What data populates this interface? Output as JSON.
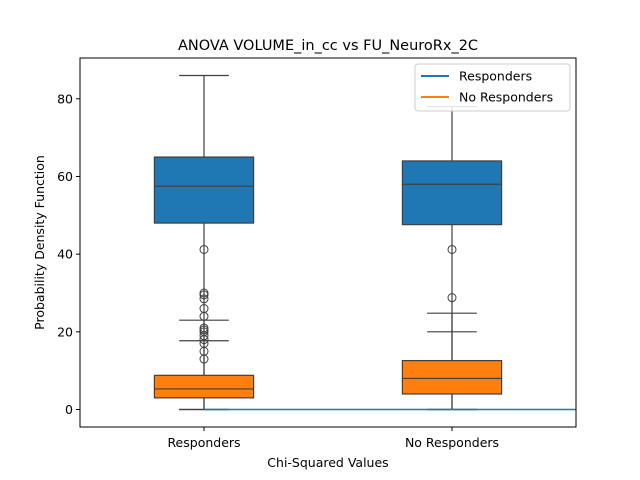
{
  "chart_data": {
    "type": "box",
    "title": "ANOVA VOLUME_in_cc vs FU_NeuroRx_2C",
    "xlabel": "Chi-Squared Values",
    "ylabel": "Probability Density Function",
    "categories": [
      "Responders",
      "No Responders"
    ],
    "ylim": [
      -4.5,
      90.5
    ],
    "yticks": [
      0,
      20,
      40,
      60,
      80
    ],
    "grid": false,
    "legend_position": "top-right",
    "series": [
      {
        "name": "Responders",
        "color": "#1f77b4",
        "boxes": [
          {
            "category": "Responders",
            "whisker_low": 0,
            "q1": 48,
            "median": 57.5,
            "q3": 65,
            "whisker_high": 86,
            "outliers": [
              41.2
            ]
          },
          {
            "category": "No Responders",
            "whisker_low": 0,
            "q1": 47.6,
            "median": 58,
            "q3": 64,
            "whisker_high": 78,
            "outliers": [
              41.2
            ]
          }
        ]
      },
      {
        "name": "No Responders",
        "color": "#ff7f0e",
        "boxes": [
          {
            "category": "Responders",
            "whisker_low": 0,
            "q1": 3,
            "median": 5.3,
            "q3": 8.8,
            "whisker_high": 17.7,
            "outliers": [
              13,
              15,
              17,
              18,
              19,
              20,
              20.5,
              21,
              24,
              26,
              28.5,
              29.5,
              30
            ]
          },
          {
            "category": "No Responders",
            "whisker_low": 0,
            "q1": 4,
            "median": 8,
            "q3": 12.6,
            "whisker_high": 20,
            "outliers": []
          }
        ]
      }
    ],
    "extra_whiskers": [
      {
        "category": "Responders",
        "value": 23
      },
      {
        "category": "No Responders",
        "value": 24.8
      },
      {
        "category": "No Responders",
        "value": 28.8,
        "outlier": true
      }
    ],
    "baseline_line": {
      "from_category": "Responders",
      "to_axis_end": true,
      "value": 0,
      "color": "#1f77b4"
    }
  }
}
